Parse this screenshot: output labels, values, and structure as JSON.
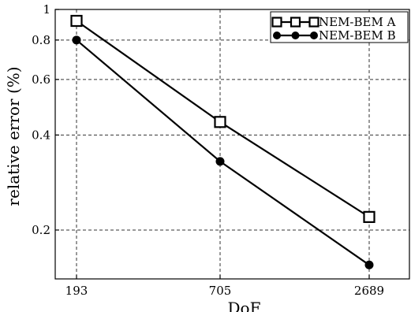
{
  "chart_data": {
    "type": "line",
    "title": "",
    "xlabel": "DoF",
    "ylabel": "relative error (%)",
    "x": [
      193,
      705,
      2689
    ],
    "x_tick_labels": [
      "193",
      "705",
      "2689"
    ],
    "x_scale": "log",
    "y_scale": "log",
    "ylim": [
      0.14,
      1
    ],
    "y_ticks": [
      0.2,
      0.4,
      0.6,
      0.8,
      1
    ],
    "y_tick_labels": [
      "0.2",
      "0.4",
      "0.6",
      "0.8",
      "1"
    ],
    "grid": true,
    "legend_position": "top-right",
    "series": [
      {
        "name": "NEM-BEM A",
        "marker": "open-square",
        "values": [
          0.92,
          0.44,
          0.22
        ]
      },
      {
        "name": "NEM-BEM B",
        "marker": "filled-circle",
        "values": [
          0.8,
          0.33,
          0.155
        ]
      }
    ]
  }
}
